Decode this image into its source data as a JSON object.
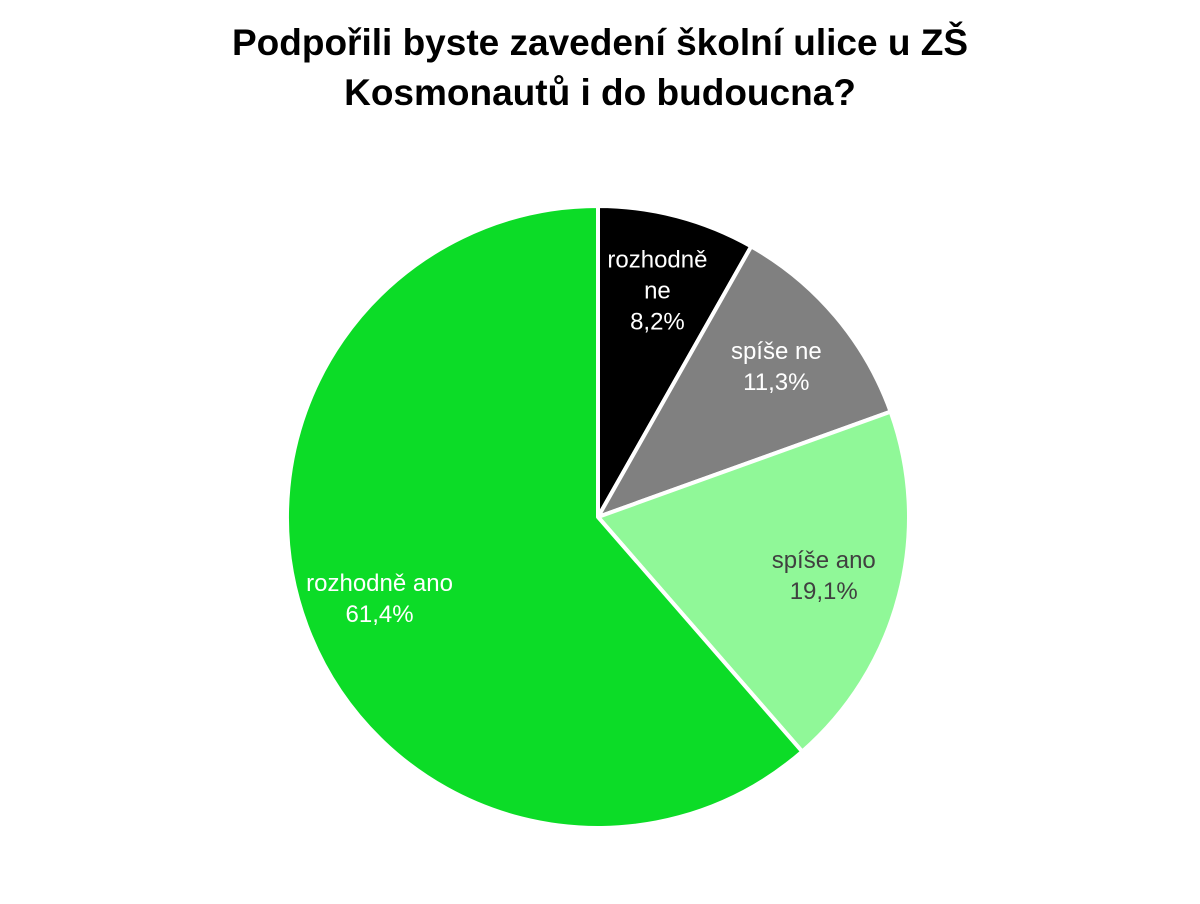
{
  "chart_data": {
    "type": "pie",
    "title": "Podpořili byste zavedení školní ulice u ZŠ Kosmonautů i do budoucna?",
    "categories": [
      "rozhodně ne",
      "spíše ne",
      "spíše ano",
      "rozhodně ano"
    ],
    "values": [
      8.2,
      11.3,
      19.1,
      61.4
    ],
    "value_labels": [
      "8,2%",
      "11,3%",
      "19,1%",
      "61,4%"
    ],
    "colors": [
      "#000000",
      "#808080",
      "#90f898",
      "#0cdc27"
    ]
  }
}
